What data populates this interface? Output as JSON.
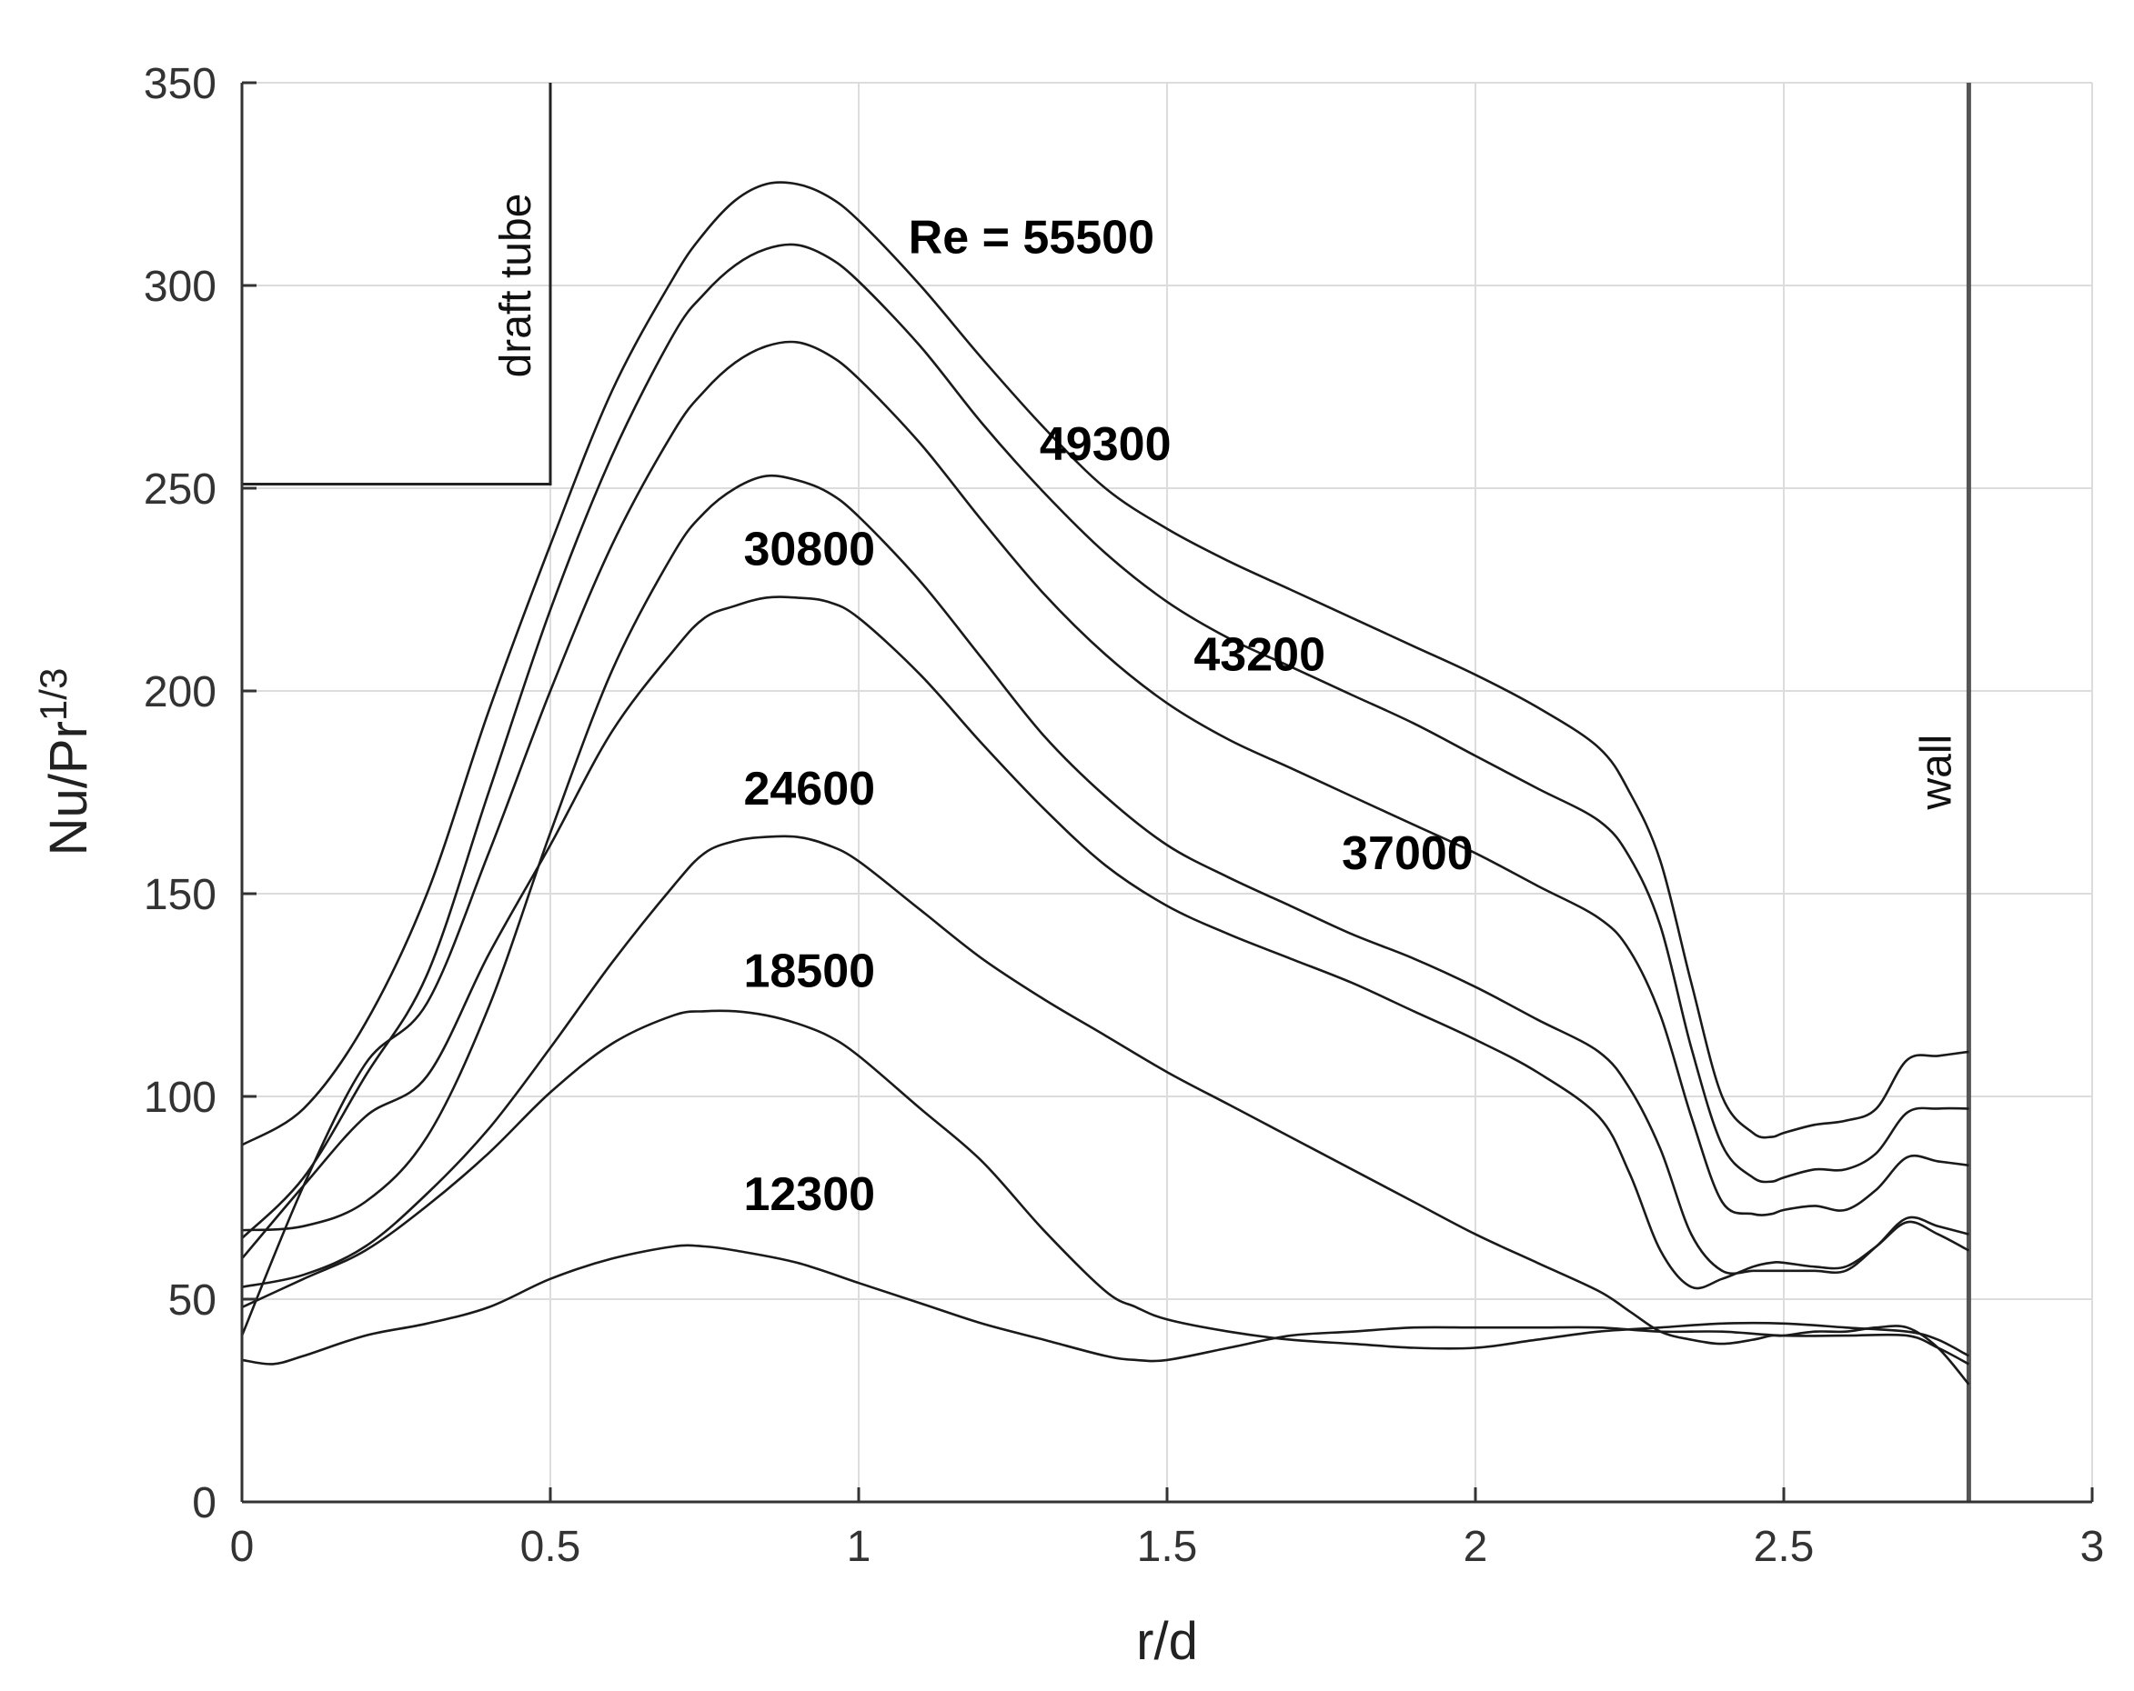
{
  "chart_data": {
    "type": "line",
    "xlabel": "r/d",
    "ylabel": "Nu/Pr",
    "ylabel_sup": "1/3",
    "xlim": [
      0,
      3
    ],
    "ylim": [
      0,
      350
    ],
    "xticks": [
      0,
      0.5,
      1,
      1.5,
      2,
      2.5,
      3
    ],
    "xtick_labels": [
      "0",
      "0.5",
      "1",
      "1.5",
      "2",
      "2.5",
      "3"
    ],
    "yticks": [
      0,
      50,
      100,
      150,
      200,
      250,
      300,
      350
    ],
    "ytick_labels": [
      "0",
      "50",
      "100",
      "150",
      "200",
      "250",
      "300",
      "350"
    ],
    "grid": true,
    "series": [
      {
        "name": "Re = 55500",
        "label_at": [
          1.28,
          308
        ],
        "x": [
          0,
          0.1,
          0.2,
          0.3,
          0.4,
          0.5,
          0.6,
          0.7,
          0.75,
          0.8,
          0.85,
          0.9,
          0.95,
          1.0,
          1.1,
          1.2,
          1.3,
          1.4,
          1.5,
          1.6,
          1.7,
          1.8,
          1.9,
          2.0,
          2.1,
          2.2,
          2.25,
          2.3,
          2.35,
          2.4,
          2.45,
          2.48,
          2.5,
          2.55,
          2.6,
          2.65,
          2.7,
          2.75,
          2.8
        ],
        "y": [
          88,
          97,
          118,
          150,
          195,
          236,
          274,
          302,
          313,
          321,
          325,
          325,
          322,
          316,
          300,
          282,
          265,
          250,
          240,
          232,
          225,
          218,
          211,
          204,
          196,
          186,
          175,
          158,
          128,
          100,
          91,
          90,
          91,
          93,
          94,
          97,
          109,
          110,
          111
        ]
      },
      {
        "name": "49300",
        "label_at": [
          1.4,
          257
        ],
        "x": [
          0,
          0.1,
          0.2,
          0.3,
          0.4,
          0.5,
          0.6,
          0.7,
          0.75,
          0.8,
          0.85,
          0.9,
          0.95,
          1.0,
          1.1,
          1.2,
          1.3,
          1.4,
          1.5,
          1.6,
          1.7,
          1.8,
          1.9,
          2.0,
          2.1,
          2.2,
          2.25,
          2.3,
          2.35,
          2.4,
          2.45,
          2.48,
          2.5,
          2.55,
          2.6,
          2.65,
          2.7,
          2.75,
          2.8
        ],
        "y": [
          65,
          80,
          105,
          130,
          175,
          220,
          258,
          288,
          298,
          305,
          309,
          310,
          307,
          301,
          285,
          266,
          249,
          234,
          222,
          213,
          206,
          199,
          192,
          184,
          176,
          168,
          159,
          142,
          112,
          88,
          80,
          79,
          80,
          82,
          82,
          86,
          96,
          97,
          97
        ]
      },
      {
        "name": "43200",
        "label_at": [
          1.65,
          205
        ],
        "x": [
          0,
          0.1,
          0.2,
          0.3,
          0.4,
          0.5,
          0.6,
          0.7,
          0.75,
          0.8,
          0.85,
          0.9,
          0.95,
          1.0,
          1.1,
          1.2,
          1.3,
          1.4,
          1.5,
          1.6,
          1.7,
          1.8,
          1.9,
          2.0,
          2.1,
          2.2,
          2.25,
          2.3,
          2.35,
          2.4,
          2.45,
          2.48,
          2.5,
          2.55,
          2.6,
          2.65,
          2.7,
          2.75,
          2.8
        ],
        "y": [
          41,
          78,
          108,
          123,
          160,
          200,
          236,
          264,
          274,
          281,
          285,
          286,
          283,
          277,
          261,
          242,
          224,
          209,
          197,
          188,
          181,
          174,
          167,
          160,
          152,
          144,
          136,
          120,
          95,
          74,
          71,
          71,
          72,
          73,
          72,
          77,
          85,
          84,
          83
        ]
      },
      {
        "name": "37000",
        "label_at": [
          1.89,
          156
        ],
        "x": [
          0,
          0.1,
          0.2,
          0.3,
          0.4,
          0.5,
          0.6,
          0.7,
          0.75,
          0.8,
          0.85,
          0.9,
          0.95,
          1.0,
          1.1,
          1.2,
          1.3,
          1.4,
          1.5,
          1.6,
          1.7,
          1.8,
          1.9,
          2.0,
          2.1,
          2.2,
          2.25,
          2.3,
          2.35,
          2.4,
          2.45,
          2.48,
          2.5,
          2.55,
          2.6,
          2.65,
          2.7,
          2.75,
          2.8
        ],
        "y": [
          67,
          68,
          74,
          90,
          122,
          165,
          205,
          234,
          244,
          250,
          253,
          252,
          249,
          243,
          227,
          208,
          189,
          174,
          162,
          154,
          147,
          140,
          134,
          127,
          119,
          111,
          102,
          87,
          66,
          57,
          57,
          57,
          57,
          57,
          57,
          63,
          70,
          68,
          66
        ]
      },
      {
        "name": "30800",
        "label_at": [
          0.92,
          231
        ],
        "x": [
          0,
          0.1,
          0.2,
          0.3,
          0.4,
          0.5,
          0.6,
          0.7,
          0.75,
          0.8,
          0.85,
          0.9,
          0.95,
          1.0,
          1.1,
          1.2,
          1.3,
          1.4,
          1.5,
          1.6,
          1.7,
          1.8,
          1.9,
          2.0,
          2.1,
          2.2,
          2.25,
          2.3,
          2.35,
          2.4,
          2.45,
          2.48,
          2.5,
          2.55,
          2.6,
          2.65,
          2.7,
          2.75,
          2.8
        ],
        "y": [
          60,
          78,
          95,
          105,
          135,
          162,
          190,
          210,
          218,
          221,
          223,
          223,
          222,
          218,
          204,
          187,
          171,
          157,
          147,
          140,
          134,
          128,
          121,
          114,
          106,
          95,
          81,
          62,
          53,
          55,
          58,
          59,
          59,
          58,
          58,
          63,
          69,
          66,
          62
        ]
      },
      {
        "name": "24600",
        "label_at": [
          0.92,
          172
        ],
        "x": [
          0,
          0.1,
          0.2,
          0.3,
          0.4,
          0.5,
          0.6,
          0.7,
          0.75,
          0.8,
          0.85,
          0.9,
          0.95,
          1.0,
          1.1,
          1.2,
          1.3,
          1.4,
          1.5,
          1.6,
          1.7,
          1.8,
          1.9,
          2.0,
          2.1,
          2.2,
          2.25,
          2.3,
          2.35,
          2.4,
          2.45,
          2.48,
          2.5,
          2.55,
          2.6,
          2.65,
          2.7,
          2.75,
          2.8
        ],
        "y": [
          53,
          56,
          63,
          76,
          92,
          112,
          133,
          152,
          160,
          163,
          164,
          164,
          162,
          158,
          146,
          134,
          124,
          115,
          106,
          98,
          90,
          82,
          74,
          66,
          59,
          52,
          47,
          42,
          40,
          39,
          40,
          41,
          41,
          42,
          42,
          43,
          43,
          38,
          29
        ]
      },
      {
        "name": "18500",
        "label_at": [
          0.92,
          127
        ],
        "x": [
          0,
          0.1,
          0.2,
          0.3,
          0.4,
          0.5,
          0.6,
          0.7,
          0.75,
          0.8,
          0.85,
          0.9,
          0.95,
          1.0,
          1.1,
          1.2,
          1.3,
          1.4,
          1.45,
          1.5,
          1.6,
          1.7,
          1.8,
          1.9,
          2.0,
          2.1,
          2.2,
          2.3,
          2.4,
          2.5,
          2.6,
          2.7,
          2.75,
          2.8
        ],
        "y": [
          48,
          55,
          62,
          73,
          86,
          101,
          113,
          120,
          121,
          121,
          120,
          118,
          115,
          110,
          97,
          84,
          67,
          52,
          48,
          45,
          42,
          40,
          39,
          38,
          38,
          40,
          42,
          43,
          44,
          44,
          43,
          42,
          40,
          36
        ]
      },
      {
        "name": "12300",
        "label_at": [
          0.92,
          72
        ],
        "x": [
          0,
          0.05,
          0.1,
          0.2,
          0.3,
          0.4,
          0.5,
          0.6,
          0.7,
          0.75,
          0.8,
          0.9,
          1.0,
          1.1,
          1.2,
          1.3,
          1.4,
          1.45,
          1.5,
          1.6,
          1.7,
          1.8,
          1.9,
          2.0,
          2.1,
          2.2,
          2.3,
          2.4,
          2.5,
          2.6,
          2.7,
          2.75,
          2.8
        ],
        "y": [
          35,
          34,
          36,
          41,
          44,
          48,
          55,
          60,
          63,
          63,
          62,
          59,
          54,
          49,
          44,
          40,
          36,
          35,
          35,
          38,
          41,
          42,
          43,
          43,
          43,
          43,
          42,
          42,
          41,
          41,
          41,
          38,
          34
        ]
      }
    ],
    "annotations": {
      "draft_tube_label": "draft tube",
      "draft_tube_box": {
        "x": [
          0,
          0.5
        ],
        "y": [
          251,
          350
        ]
      },
      "wall_label": "wall",
      "wall_x": 2.8
    }
  }
}
